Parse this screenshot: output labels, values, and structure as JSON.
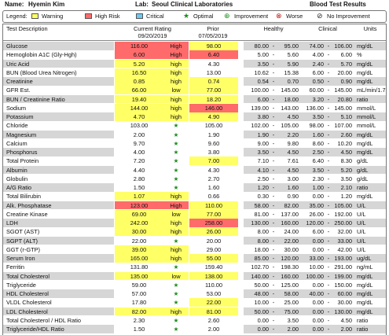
{
  "header": {
    "name_label": "Name:",
    "name": "Hyemin  Kim",
    "lab_label": "Lab:",
    "lab": "Seoul Clinical Laboratories",
    "report": "Blood Test Results"
  },
  "legend": {
    "label": "Legend:",
    "items": [
      {
        "swatch": "#ffff66",
        "text": "Warning"
      },
      {
        "swatch": "#ff6b6b",
        "text": "High Risk"
      },
      {
        "swatch": "#6fc8f0",
        "text": "Critical"
      },
      {
        "icon": "★",
        "color": "#1e8c1e",
        "text": "Optimal"
      },
      {
        "icon": "⊕",
        "color": "#1e8c1e",
        "text": "Improvement"
      },
      {
        "icon": "⊗",
        "color": "#c01010",
        "text": "Worse"
      },
      {
        "icon": "⊘",
        "color": "#222222",
        "text": "No Improvement"
      }
    ]
  },
  "table": {
    "columns": {
      "test": "Test Description",
      "current": "Current Rating",
      "current_date": "09/20/2019",
      "prior": "Prior",
      "prior_date": "07/05/2019",
      "healthy": "Healthy",
      "clinical": "Clinical",
      "units": "Units",
      "range_sep": "-"
    },
    "stripe": "#d6d6d6",
    "star_color": "#1e8c1e",
    "rows": [
      {
        "test": "Glucose",
        "current": "116.00",
        "rating": "High",
        "prior": "98.00",
        "healthy": [
          "80.00",
          "95.00"
        ],
        "clinical": [
          "74.00",
          "106.00"
        ],
        "units": "mg/dL",
        "current_fill": "#ff6b6b",
        "prior_fill": "#ffff66"
      },
      {
        "test": "Hemoglobin A1C (Gly-Hgh)",
        "current": "6.00",
        "rating": "High",
        "prior": "6.40",
        "healthy": [
          "5.00",
          "5.60"
        ],
        "clinical": [
          "4.00",
          "6.00"
        ],
        "units": "%",
        "current_fill": "#ff6b6b",
        "prior_fill": "#ff6b6b"
      },
      {
        "test": "Uric Acid",
        "current": "5.20",
        "rating": "high",
        "prior": "4.30",
        "healthy": [
          "3.50",
          "5.90"
        ],
        "clinical": [
          "2.40",
          "5.70"
        ],
        "units": "mg/dL",
        "current_fill": "#ffff66"
      },
      {
        "test": "BUN (Blood Urea Nitrogen)",
        "current": "16.50",
        "rating": "high",
        "prior": "13.00",
        "healthy": [
          "10.62",
          "15.38"
        ],
        "clinical": [
          "6.00",
          "20.00"
        ],
        "units": "mg/dL",
        "current_fill": "#ffff66"
      },
      {
        "test": "Creatinine",
        "current": "0.85",
        "rating": "high",
        "prior": "0.74",
        "healthy": [
          "0.54",
          "0.70"
        ],
        "clinical": [
          "0.50",
          "0.90"
        ],
        "units": "mg/dL",
        "current_fill": "#ffff66",
        "prior_fill": "#ffff66"
      },
      {
        "test": "GFR Est.",
        "current": "66.00",
        "rating": "low",
        "prior": "77.00",
        "healthy": [
          "100.00",
          "145.00"
        ],
        "clinical": [
          "60.00",
          "145.00"
        ],
        "units": "mL/min/1.73m",
        "current_fill": "#ffff66",
        "prior_fill": "#ffff66"
      },
      {
        "test": "BUN / Creatinine Ratio",
        "current": "19.40",
        "rating": "high",
        "prior": "18.20",
        "healthy": [
          "6.00",
          "18.00"
        ],
        "clinical": [
          "3.20",
          "20.80"
        ],
        "units": "ratio",
        "current_fill": "#ffff66",
        "prior_fill": "#ffff66"
      },
      {
        "test": "Sodium",
        "current": "144.00",
        "rating": "high",
        "prior": "146.00",
        "healthy": [
          "139.00",
          "143.00"
        ],
        "clinical": [
          "136.00",
          "145.00"
        ],
        "units": "mmol/L",
        "current_fill": "#ffff66",
        "prior_fill": "#ff6b6b"
      },
      {
        "test": "Potassium",
        "current": "4.70",
        "rating": "high",
        "prior": "4.90",
        "healthy": [
          "3.80",
          "4.50"
        ],
        "clinical": [
          "3.50",
          "5.10"
        ],
        "units": "mmol/L",
        "current_fill": "#ffff66",
        "prior_fill": "#ffff66"
      },
      {
        "test": "Chloride",
        "current": "103.00",
        "rating": "★",
        "prior": "105.00",
        "healthy": [
          "102.00",
          "105.00"
        ],
        "clinical": [
          "98.00",
          "107.00"
        ],
        "units": "mmol/L"
      },
      {
        "test": "Magnesium",
        "current": "2.00",
        "rating": "★",
        "prior": "1.90",
        "healthy": [
          "1.90",
          "2.20"
        ],
        "clinical": [
          "1.60",
          "2.60"
        ],
        "units": "mg/dL"
      },
      {
        "test": "Calcium",
        "current": "9.70",
        "rating": "★",
        "prior": "9.60",
        "healthy": [
          "9.00",
          "9.80"
        ],
        "clinical": [
          "8.60",
          "10.20"
        ],
        "units": "mg/dL"
      },
      {
        "test": "Phosphorus",
        "current": "4.00",
        "rating": "★",
        "prior": "3.80",
        "healthy": [
          "3.50",
          "4.50"
        ],
        "clinical": [
          "2.50",
          "4.50"
        ],
        "units": "mg/dL"
      },
      {
        "test": "Total Protein",
        "current": "7.20",
        "rating": "★",
        "prior": "7.00",
        "healthy": [
          "7.10",
          "7.61"
        ],
        "clinical": [
          "6.40",
          "8.30"
        ],
        "units": "g/dL",
        "prior_fill": "#ffff66"
      },
      {
        "test": "Albumin",
        "current": "4.40",
        "rating": "★",
        "prior": "4.30",
        "healthy": [
          "4.10",
          "4.50"
        ],
        "clinical": [
          "3.50",
          "5.20"
        ],
        "units": "g/dL"
      },
      {
        "test": "Globulin",
        "current": "2.80",
        "rating": "★",
        "prior": "2.70",
        "healthy": [
          "2.50",
          "3.00"
        ],
        "clinical": [
          "2.30",
          "3.50"
        ],
        "units": "g/dL"
      },
      {
        "test": "A/G Ratio",
        "current": "1.50",
        "rating": "★",
        "prior": "1.60",
        "healthy": [
          "1.20",
          "1.60"
        ],
        "clinical": [
          "1.00",
          "2.10"
        ],
        "units": "ratio"
      },
      {
        "test": "Total Bilirubin",
        "current": "1.07",
        "rating": "high",
        "prior": "0.66",
        "healthy": [
          "0.30",
          "0.90"
        ],
        "clinical": [
          "0.00",
          "1.20"
        ],
        "units": "mg/dL",
        "current_fill": "#ffff66"
      },
      {
        "test": "Alk. Phosphatase",
        "current": "123.00",
        "rating": "High",
        "prior": "110.00",
        "healthy": [
          "58.00",
          "82.00"
        ],
        "clinical": [
          "35.00",
          "105.00"
        ],
        "units": "U/L",
        "current_fill": "#ff6b6b",
        "prior_fill": "#ffff66"
      },
      {
        "test": "Creatine Kinase",
        "current": "69.00",
        "rating": "low",
        "prior": "77.00",
        "healthy": [
          "81.00",
          "137.00"
        ],
        "clinical": [
          "26.00",
          "192.00"
        ],
        "units": "U/L",
        "current_fill": "#ffff66",
        "prior_fill": "#ffff66"
      },
      {
        "test": "LDH",
        "current": "242.00",
        "rating": "high",
        "prior": "258.00",
        "healthy": [
          "130.00",
          "160.00"
        ],
        "clinical": [
          "120.00",
          "250.00"
        ],
        "units": "U/L",
        "current_fill": "#ffff66",
        "prior_fill": "#ff6b6b"
      },
      {
        "test": "SGOT (AST)",
        "current": "30.00",
        "rating": "high",
        "prior": "26.00",
        "healthy": [
          "8.00",
          "24.00"
        ],
        "clinical": [
          "6.00",
          "32.00"
        ],
        "units": "U/L",
        "current_fill": "#ffff66",
        "prior_fill": "#ffff66"
      },
      {
        "test": "SGPT (ALT)",
        "current": "22.00",
        "rating": "★",
        "prior": "20.00",
        "healthy": [
          "8.00",
          "22.00"
        ],
        "clinical": [
          "0.00",
          "33.00"
        ],
        "units": "U/L"
      },
      {
        "test": "GGT (r-GTP)",
        "current": "39.00",
        "rating": "high",
        "prior": "29.00",
        "healthy": [
          "18.00",
          "30.00"
        ],
        "clinical": [
          "0.00",
          "42.00"
        ],
        "units": "U/L",
        "current_fill": "#ffff66"
      },
      {
        "test": "Serum Iron",
        "current": "165.00",
        "rating": "high",
        "prior": "55.00",
        "healthy": [
          "85.00",
          "120.00"
        ],
        "clinical": [
          "33.00",
          "193.00"
        ],
        "units": "ug/dL",
        "current_fill": "#ffff66",
        "prior_fill": "#ffff66"
      },
      {
        "test": "Ferritin",
        "current": "131.80",
        "rating": "★",
        "prior": "159.40",
        "healthy": [
          "102.70",
          "198.30"
        ],
        "clinical": [
          "10.00",
          "291.00"
        ],
        "units": "ng/mL"
      },
      {
        "test": "Total Cholesterol",
        "current": "135.00",
        "rating": "low",
        "prior": "138.00",
        "healthy": [
          "140.00",
          "160.00"
        ],
        "clinical": [
          "100.00",
          "199.00"
        ],
        "units": "mg/dL",
        "current_fill": "#ffff66",
        "prior_fill": "#ffff66"
      },
      {
        "test": "Triglyceride",
        "current": "59.00",
        "rating": "★",
        "prior": "110.00",
        "healthy": [
          "50.00",
          "125.00"
        ],
        "clinical": [
          "0.00",
          "150.00"
        ],
        "units": "mg/dL"
      },
      {
        "test": "HDL Cholesterol",
        "current": "57.00",
        "rating": "★",
        "prior": "53.00",
        "healthy": [
          "48.00",
          "58.00"
        ],
        "clinical": [
          "40.00",
          "60.00"
        ],
        "units": "mg/dL"
      },
      {
        "test": "VLDL Cholesterol",
        "current": "17.80",
        "rating": "★",
        "prior": "22.00",
        "healthy": [
          "10.00",
          "25.00"
        ],
        "clinical": [
          "0.00",
          "30.00"
        ],
        "units": "mg/dL",
        "prior_fill": "#ffff66"
      },
      {
        "test": "LDL Cholesterol",
        "current": "82.00",
        "rating": "high",
        "prior": "81.00",
        "healthy": [
          "50.00",
          "75.00"
        ],
        "clinical": [
          "0.00",
          "130.00"
        ],
        "units": "mg/dL",
        "current_fill": "#ffff66",
        "prior_fill": "#ffff66"
      },
      {
        "test": "Total Cholesterol / HDL Ratio",
        "current": "2.30",
        "rating": "★",
        "prior": "2.60",
        "healthy": [
          "0.00",
          "3.50"
        ],
        "clinical": [
          "0.00",
          "4.50"
        ],
        "units": "ratio"
      },
      {
        "test": "Triglyceride/HDL Ratio",
        "current": "1.50",
        "rating": "★",
        "prior": "2.00",
        "healthy": [
          "0.00",
          "2.00"
        ],
        "clinical": [
          "0.00",
          "2.00"
        ],
        "units": "ratio"
      }
    ]
  }
}
